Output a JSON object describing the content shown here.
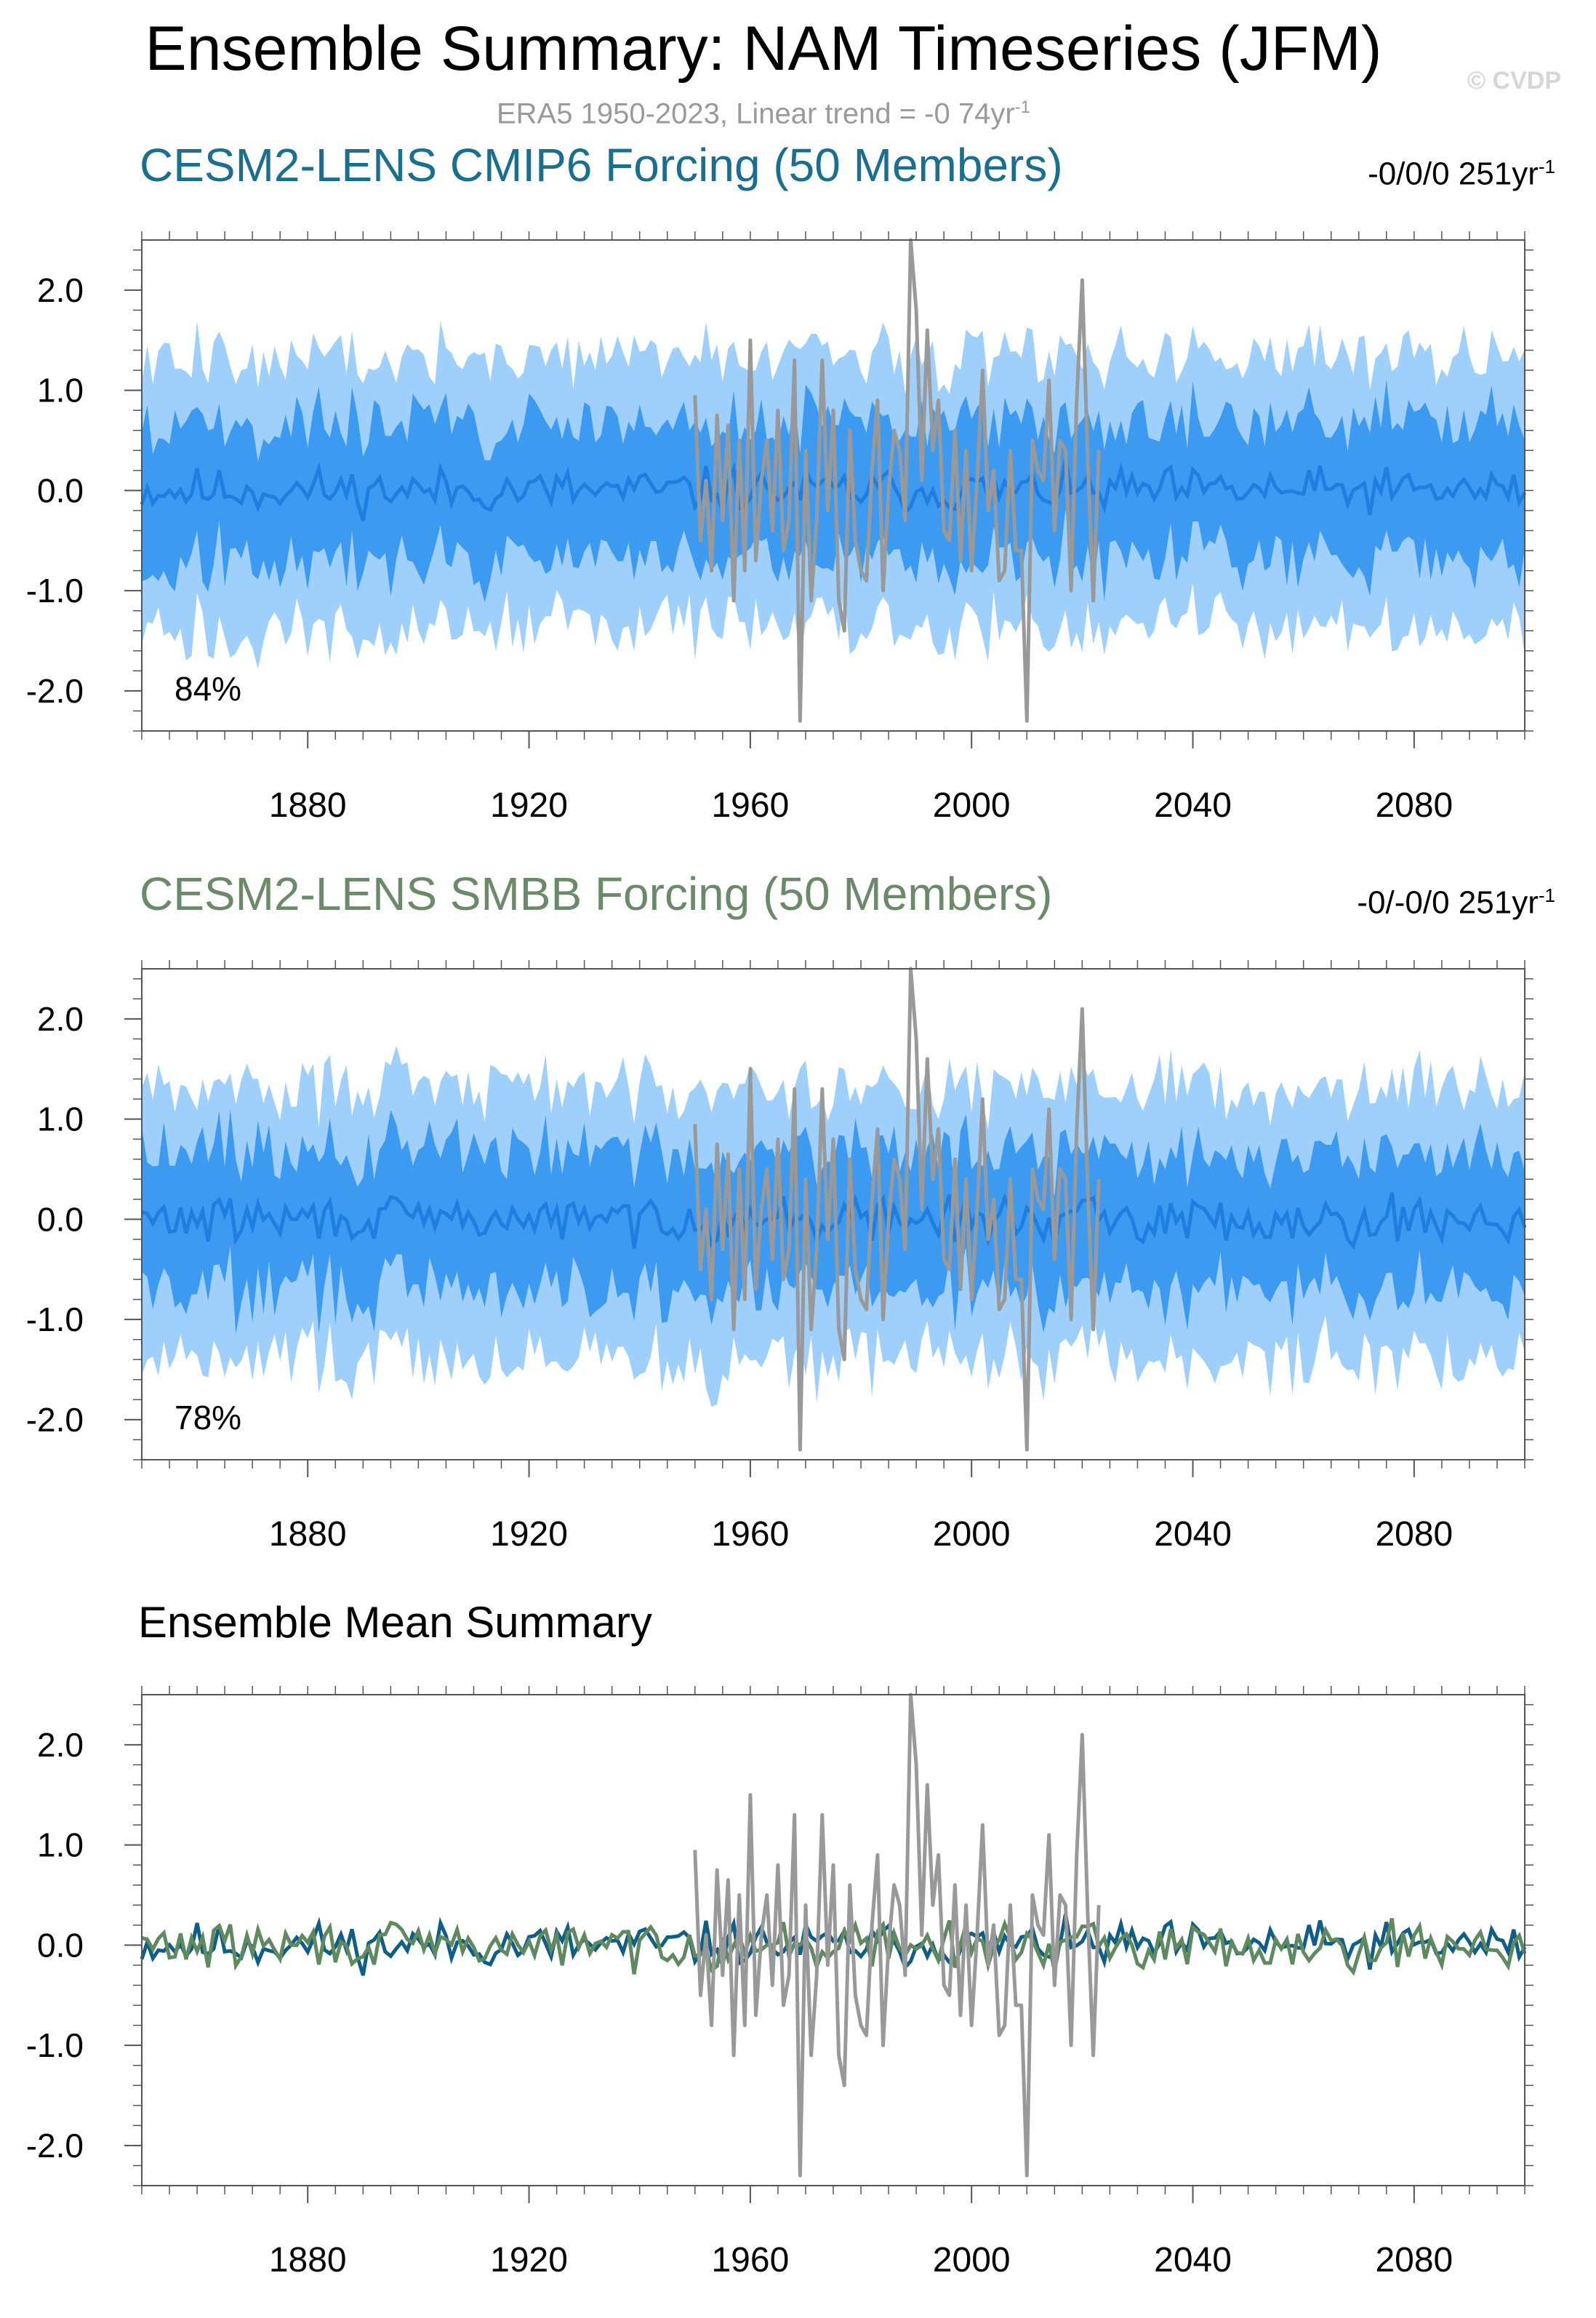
{
  "title": "Ensemble Summary: NAM Timeseries (JFM)",
  "watermark": "© CVDP",
  "subtitle": "ERA5 1950-2023, Linear trend = -0 74yr",
  "subtitle_sup": "-1",
  "colors": {
    "shade_outer": "#9fd0fb",
    "shade_inner": "#3c9af1",
    "ens_mean": "#1f7fe0",
    "observed": "#999999",
    "cmip6_line": "#0e5e86",
    "smbb_line": "#5f8a5f",
    "cmip6_title": "#1a6e8e",
    "smbb_title": "#6a8a6a"
  },
  "panels": [
    {
      "title": "CESM2-LENS CMIP6 Forcing (50 Members)",
      "trend": "-0/0/0 251yr",
      "trend_sup": "-1",
      "percent": "84%"
    },
    {
      "title": "CESM2-LENS SMBB Forcing (50 Members)",
      "trend": "-0/-0/0 251yr",
      "trend_sup": "-1",
      "percent": "78%"
    },
    {
      "title": "Ensemble Mean Summary"
    }
  ],
  "chart_data": [
    {
      "type": "area",
      "title": "CESM2-LENS CMIP6 Forcing (50 Members)",
      "xlim": [
        1850,
        2100
      ],
      "ylim": [
        -2.4,
        2.5
      ],
      "x_ticks": [
        1880,
        1920,
        1960,
        2000,
        2040,
        2080
      ],
      "y_ticks": [
        "2.0",
        "1.0",
        "0.0",
        "-1.0",
        "-2.0"
      ],
      "y_tick_values": [
        2.0,
        1.0,
        0.0,
        -1.0,
        -2.0
      ],
      "x_range": [
        1850,
        2100
      ],
      "seed": 11,
      "observed": {
        "name": "ERA5",
        "x_start": 1950,
        "values": [
          0.95,
          -0.5,
          0.1,
          -0.8,
          0.75,
          -0.3,
          0.65,
          -1.1,
          0.5,
          -0.8,
          1.5,
          -0.7,
          0.1,
          0.5,
          -0.4,
          0.8,
          -0.6,
          -0.3,
          1.3,
          -2.3,
          0.4,
          -1.1,
          -0.3,
          1.3,
          -0.2,
          0.8,
          -1.1,
          -1.4,
          0.6,
          -0.5,
          -0.8,
          -0.9,
          0.2,
          0.9,
          -1.0,
          0.0,
          0.6,
          0.4,
          -0.3,
          2.5,
          1.8,
          0.1,
          1.6,
          0.4,
          0.9,
          -0.4,
          -0.5,
          0.6,
          -0.7,
          0.4,
          -0.8,
          0.1,
          1.2,
          -0.2,
          0.2,
          -0.9,
          -0.8,
          0.4,
          -0.6,
          -0.6,
          -2.3,
          0.5,
          0.2,
          0.1,
          1.1,
          -0.4,
          0.5,
          0.4,
          -1.0,
          0.9,
          2.1,
          0.3,
          -1.1,
          0.4
        ]
      }
    },
    {
      "type": "area",
      "title": "CESM2-LENS SMBB Forcing (50 Members)",
      "xlim": [
        1850,
        2100
      ],
      "ylim": [
        -2.4,
        2.5
      ],
      "x_ticks": [
        1880,
        1920,
        1960,
        2000,
        2040,
        2080
      ],
      "y_ticks": [
        "2.0",
        "1.0",
        "0.0",
        "-1.0",
        "-2.0"
      ],
      "y_tick_values": [
        2.0,
        1.0,
        0.0,
        -1.0,
        -2.0
      ],
      "x_range": [
        1850,
        2100
      ],
      "seed": 29,
      "observed": {
        "name": "ERA5",
        "x_start": 1950,
        "values": [
          0.95,
          -0.5,
          0.1,
          -0.8,
          0.75,
          -0.3,
          0.65,
          -1.1,
          0.5,
          -0.8,
          1.5,
          -0.7,
          0.1,
          0.5,
          -0.4,
          0.8,
          -0.6,
          -0.3,
          1.3,
          -2.3,
          0.4,
          -1.1,
          -0.3,
          1.3,
          -0.2,
          0.8,
          -1.1,
          -1.4,
          0.6,
          -0.5,
          -0.8,
          -0.9,
          0.2,
          0.9,
          -1.0,
          0.0,
          0.6,
          0.4,
          -0.3,
          2.5,
          1.8,
          0.1,
          1.6,
          0.4,
          0.9,
          -0.4,
          -0.5,
          0.6,
          -0.7,
          0.4,
          -0.8,
          0.1,
          1.2,
          -0.2,
          0.2,
          -0.9,
          -0.8,
          0.4,
          -0.6,
          -0.6,
          -2.3,
          0.5,
          0.2,
          0.1,
          1.1,
          -0.4,
          0.5,
          0.4,
          -1.0,
          0.9,
          2.1,
          0.3,
          -1.1,
          0.4
        ]
      }
    },
    {
      "type": "line",
      "title": "Ensemble Mean Summary",
      "xlim": [
        1850,
        2100
      ],
      "ylim": [
        -2.4,
        2.5
      ],
      "x_ticks": [
        1880,
        1920,
        1960,
        2000,
        2040,
        2080
      ],
      "y_ticks": [
        "2.0",
        "1.0",
        "0.0",
        "-1.0",
        "-2.0"
      ],
      "y_tick_values": [
        2.0,
        1.0,
        0.0,
        -1.0,
        -2.0
      ],
      "x_range": [
        1850,
        2100
      ],
      "seeds": [
        11,
        29
      ],
      "observed": {
        "name": "ERA5",
        "x_start": 1950,
        "values": [
          0.95,
          -0.5,
          0.1,
          -0.8,
          0.75,
          -0.3,
          0.65,
          -1.1,
          0.5,
          -0.8,
          1.5,
          -0.7,
          0.1,
          0.5,
          -0.4,
          0.8,
          -0.6,
          -0.3,
          1.3,
          -2.3,
          0.4,
          -1.1,
          -0.3,
          1.3,
          -0.2,
          0.8,
          -1.1,
          -1.4,
          0.6,
          -0.5,
          -0.8,
          -0.9,
          0.2,
          0.9,
          -1.0,
          0.0,
          0.6,
          0.4,
          -0.3,
          2.5,
          1.8,
          0.1,
          1.6,
          0.4,
          0.9,
          -0.4,
          -0.5,
          0.6,
          -0.7,
          0.4,
          -0.8,
          0.1,
          1.2,
          -0.2,
          0.2,
          -0.9,
          -0.8,
          0.4,
          -0.6,
          -0.6,
          -2.3,
          0.5,
          0.2,
          0.1,
          1.1,
          -0.4,
          0.5,
          0.4,
          -1.0,
          0.9,
          2.1,
          0.3,
          -1.1,
          0.4
        ]
      }
    }
  ]
}
